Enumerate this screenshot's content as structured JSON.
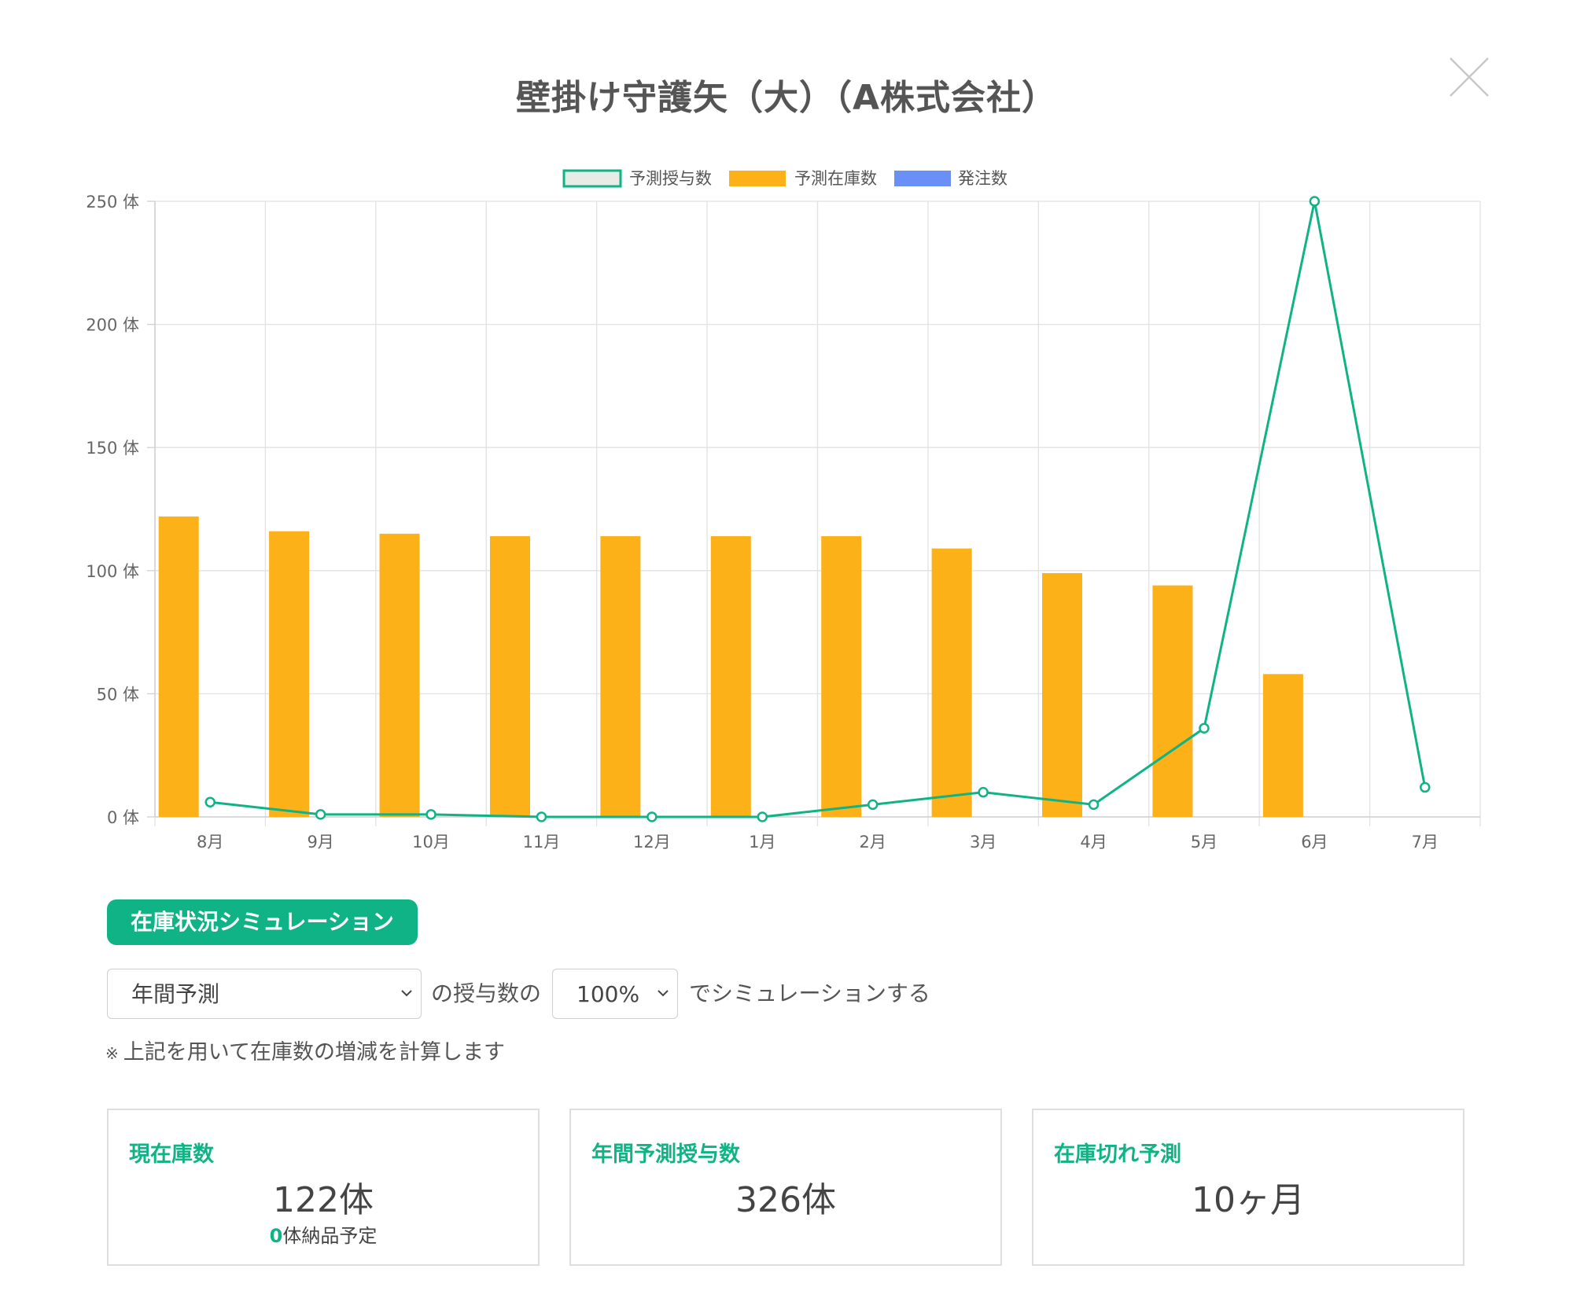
{
  "modal": {
    "title": "壁掛け守護矢（大）（A株式会社）"
  },
  "chart_data": {
    "type": "bar",
    "categories": [
      "8月",
      "9月",
      "10月",
      "11月",
      "12月",
      "1月",
      "2月",
      "3月",
      "4月",
      "5月",
      "6月",
      "7月"
    ],
    "series": [
      {
        "name": "予測授与数",
        "type": "line",
        "color": "#10b386",
        "values": [
          6,
          1,
          1,
          0,
          0,
          0,
          5,
          10,
          5,
          36,
          250,
          12
        ]
      },
      {
        "name": "予測在庫数",
        "type": "bar",
        "color": "#fbb117",
        "values": [
          122,
          116,
          115,
          114,
          114,
          114,
          114,
          109,
          99,
          94,
          58,
          0
        ]
      },
      {
        "name": "発注数",
        "type": "bar",
        "color": "#6a8ff7",
        "values": [
          0,
          0,
          0,
          0,
          0,
          0,
          0,
          0,
          0,
          0,
          0,
          0
        ]
      }
    ],
    "y_ticks": [
      "0 体",
      "50 体",
      "100 体",
      "150 体",
      "200 体",
      "250 体"
    ],
    "ylim": [
      0,
      250
    ],
    "grid": true,
    "legend_position": "top-center"
  },
  "simulation": {
    "badge": "在庫状況シミュレーション",
    "period_select": "年間予測",
    "text_mid": "の授与数の",
    "percent_select": "100%",
    "text_end": "でシミュレーションする",
    "note_mark": "※",
    "note": "上記を用いて在庫数の増減を計算します"
  },
  "cards": [
    {
      "label": "現在庫数",
      "value": "122体",
      "sub_num": "0",
      "sub_text": "体納品予定"
    },
    {
      "label": "年間予測授与数",
      "value": "326体"
    },
    {
      "label": "在庫切れ予測",
      "value": "10ヶ月"
    }
  ]
}
